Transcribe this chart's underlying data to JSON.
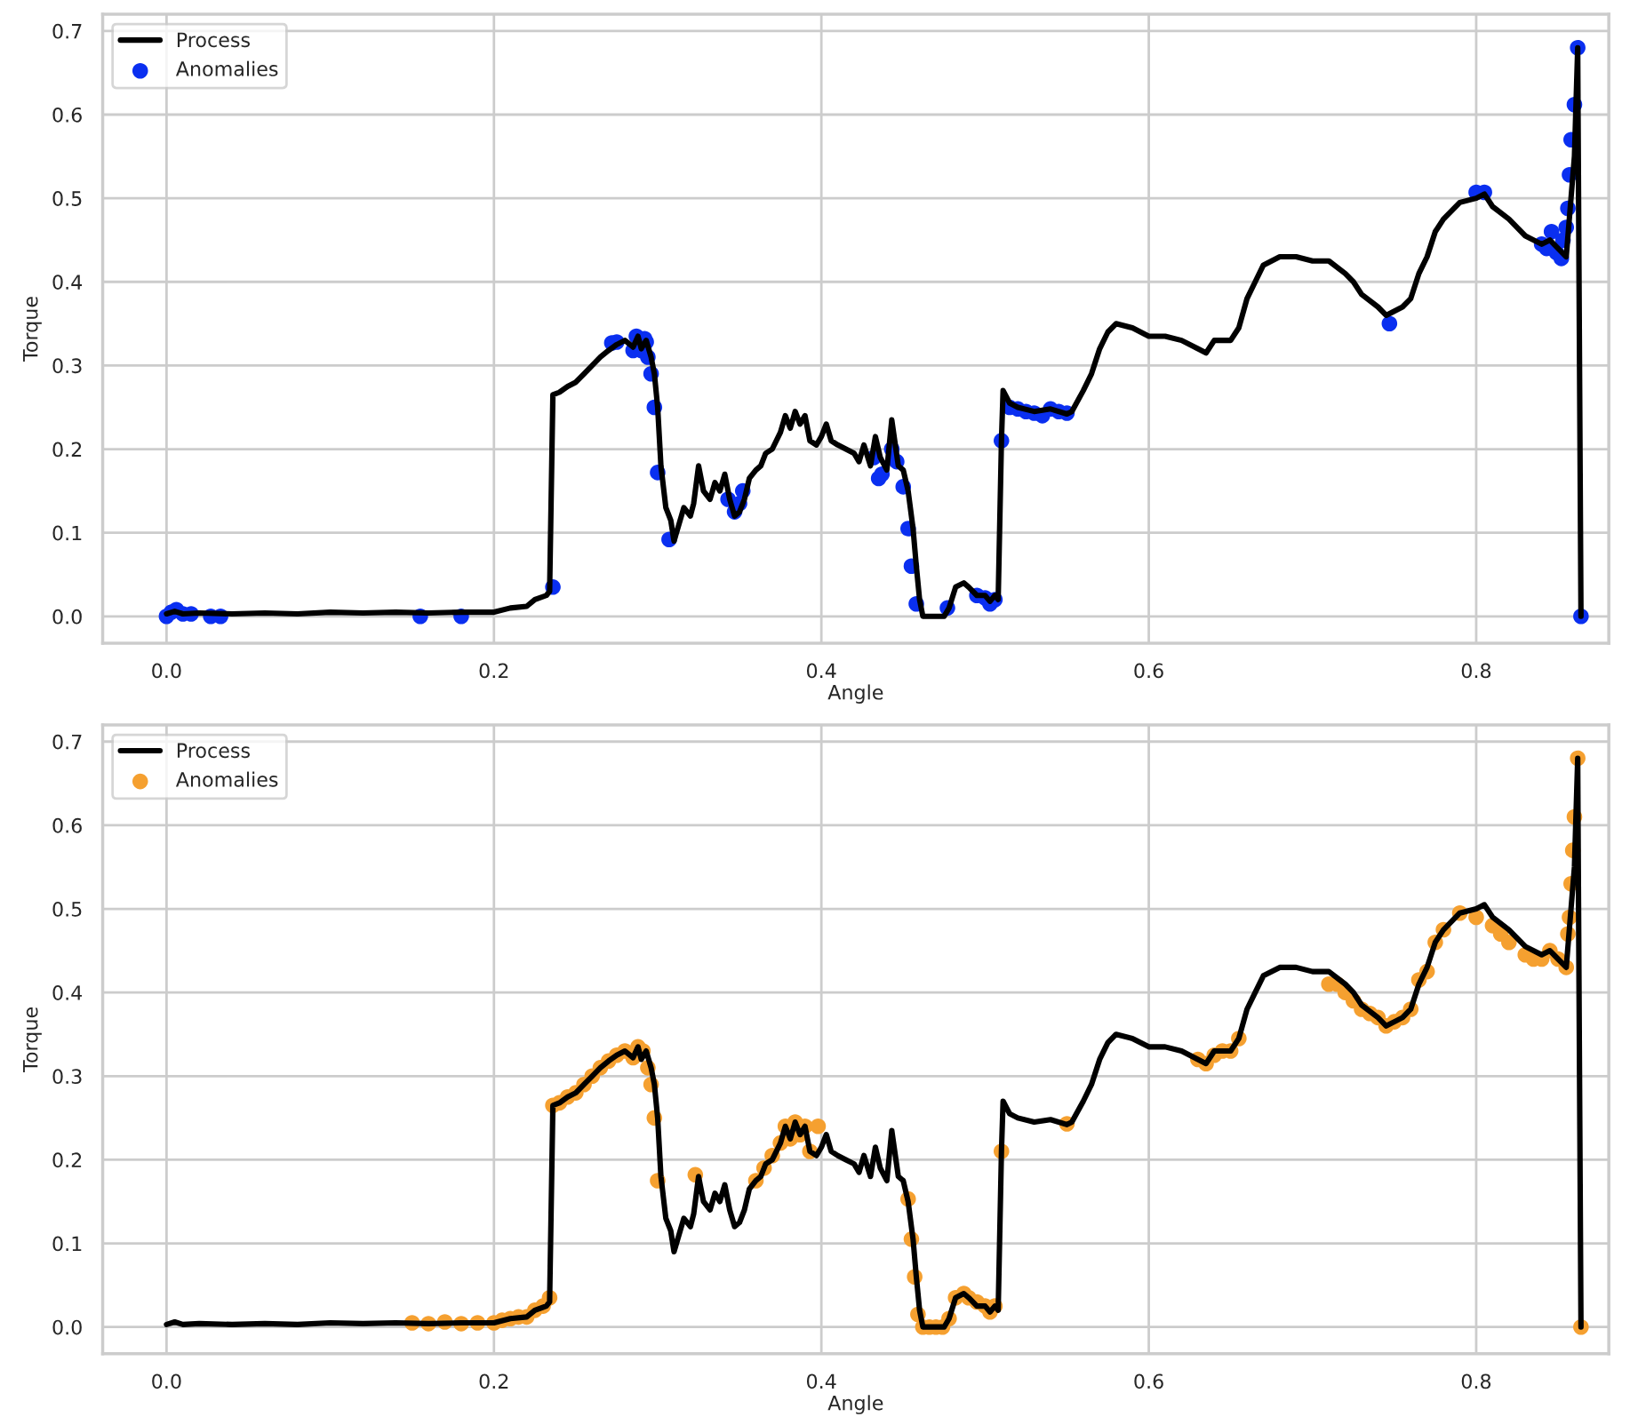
{
  "chart_data": [
    {
      "type": "line",
      "xlabel": "Angle",
      "ylabel": "Torque",
      "xlim": [
        -0.039,
        0.881
      ],
      "ylim": [
        -0.032,
        0.72
      ],
      "xticks": [
        {
          "value": 0.0,
          "label": "0.0"
        },
        {
          "value": 0.2,
          "label": "0.2"
        },
        {
          "value": 0.4,
          "label": "0.4"
        },
        {
          "value": 0.6,
          "label": "0.6"
        },
        {
          "value": 0.8,
          "label": "0.8"
        }
      ],
      "yticks": [
        {
          "value": 0.0,
          "label": "0.0"
        },
        {
          "value": 0.1,
          "label": "0.1"
        },
        {
          "value": 0.2,
          "label": "0.2"
        },
        {
          "value": 0.3,
          "label": "0.3"
        },
        {
          "value": 0.4,
          "label": "0.4"
        },
        {
          "value": 0.5,
          "label": "0.5"
        },
        {
          "value": 0.6,
          "label": "0.6"
        },
        {
          "value": 0.7,
          "label": "0.7"
        }
      ],
      "grid": true,
      "legend": "top left",
      "series": [
        {
          "name": "Process",
          "color": "#000000",
          "line_style": "solid",
          "x": [
            0.0,
            0.005,
            0.01,
            0.02,
            0.04,
            0.06,
            0.08,
            0.1,
            0.12,
            0.14,
            0.16,
            0.18,
            0.2,
            0.21,
            0.22,
            0.225,
            0.232,
            0.234,
            0.236,
            0.24,
            0.245,
            0.25,
            0.255,
            0.26,
            0.265,
            0.27,
            0.275,
            0.28,
            0.285,
            0.288,
            0.29,
            0.293,
            0.296,
            0.298,
            0.3,
            0.302,
            0.305,
            0.308,
            0.31,
            0.313,
            0.316,
            0.32,
            0.322,
            0.325,
            0.328,
            0.332,
            0.335,
            0.338,
            0.341,
            0.344,
            0.347,
            0.35,
            0.353,
            0.356,
            0.36,
            0.363,
            0.366,
            0.37,
            0.375,
            0.378,
            0.381,
            0.384,
            0.387,
            0.39,
            0.393,
            0.397,
            0.4,
            0.403,
            0.406,
            0.41,
            0.415,
            0.42,
            0.423,
            0.426,
            0.43,
            0.433,
            0.436,
            0.44,
            0.443,
            0.447,
            0.45,
            0.453,
            0.456,
            0.458,
            0.46,
            0.462,
            0.475,
            0.478,
            0.482,
            0.487,
            0.49,
            0.495,
            0.5,
            0.503,
            0.506,
            0.508,
            0.51,
            0.511,
            0.515,
            0.52,
            0.53,
            0.54,
            0.55,
            0.553,
            0.56,
            0.565,
            0.57,
            0.575,
            0.58,
            0.59,
            0.6,
            0.61,
            0.62,
            0.63,
            0.635,
            0.64,
            0.65,
            0.655,
            0.66,
            0.665,
            0.67,
            0.68,
            0.69,
            0.7,
            0.71,
            0.72,
            0.725,
            0.73,
            0.74,
            0.745,
            0.75,
            0.755,
            0.76,
            0.765,
            0.77,
            0.775,
            0.78,
            0.79,
            0.8,
            0.805,
            0.81,
            0.82,
            0.83,
            0.84,
            0.845,
            0.85,
            0.855,
            0.86,
            0.862,
            0.864
          ],
          "values": [
            0.003,
            0.006,
            0.003,
            0.004,
            0.003,
            0.004,
            0.003,
            0.005,
            0.004,
            0.005,
            0.004,
            0.005,
            0.005,
            0.01,
            0.012,
            0.02,
            0.025,
            0.03,
            0.265,
            0.268,
            0.275,
            0.28,
            0.29,
            0.3,
            0.31,
            0.318,
            0.325,
            0.33,
            0.322,
            0.335,
            0.32,
            0.33,
            0.31,
            0.29,
            0.25,
            0.18,
            0.13,
            0.115,
            0.09,
            0.11,
            0.13,
            0.12,
            0.135,
            0.18,
            0.15,
            0.14,
            0.16,
            0.15,
            0.17,
            0.14,
            0.12,
            0.125,
            0.14,
            0.165,
            0.175,
            0.18,
            0.195,
            0.2,
            0.22,
            0.24,
            0.225,
            0.245,
            0.23,
            0.24,
            0.21,
            0.205,
            0.215,
            0.23,
            0.21,
            0.205,
            0.2,
            0.195,
            0.185,
            0.205,
            0.18,
            0.215,
            0.19,
            0.175,
            0.235,
            0.18,
            0.175,
            0.15,
            0.105,
            0.06,
            0.02,
            0.0,
            0.0,
            0.01,
            0.035,
            0.04,
            0.035,
            0.025,
            0.025,
            0.018,
            0.025,
            0.02,
            0.21,
            0.27,
            0.255,
            0.25,
            0.245,
            0.248,
            0.242,
            0.245,
            0.27,
            0.29,
            0.32,
            0.34,
            0.35,
            0.345,
            0.335,
            0.335,
            0.33,
            0.32,
            0.315,
            0.33,
            0.33,
            0.345,
            0.38,
            0.4,
            0.42,
            0.43,
            0.43,
            0.425,
            0.425,
            0.41,
            0.4,
            0.385,
            0.37,
            0.36,
            0.365,
            0.37,
            0.38,
            0.41,
            0.43,
            0.46,
            0.475,
            0.495,
            0.5,
            0.505,
            0.49,
            0.475,
            0.455,
            0.445,
            0.45,
            0.44,
            0.43,
            0.55,
            0.68,
            0.0
          ]
        },
        {
          "name": "Anomalies",
          "type": "scatter",
          "color": "#0a2ff0",
          "marker": "circle",
          "x": [
            0.0,
            0.003,
            0.006,
            0.01,
            0.015,
            0.027,
            0.033,
            0.155,
            0.18,
            0.236,
            0.272,
            0.275,
            0.285,
            0.287,
            0.29,
            0.292,
            0.293,
            0.294,
            0.296,
            0.298,
            0.3,
            0.307,
            0.343,
            0.347,
            0.35,
            0.352,
            0.432,
            0.435,
            0.437,
            0.443,
            0.446,
            0.45,
            0.453,
            0.455,
            0.458,
            0.477,
            0.495,
            0.5,
            0.503,
            0.506,
            0.51,
            0.515,
            0.52,
            0.525,
            0.53,
            0.535,
            0.54,
            0.545,
            0.55,
            0.747,
            0.8,
            0.805,
            0.84,
            0.843,
            0.846,
            0.849,
            0.852,
            0.853,
            0.855,
            0.856,
            0.857,
            0.858,
            0.86,
            0.862,
            0.864
          ],
          "values": [
            0.0,
            0.005,
            0.008,
            0.003,
            0.003,
            0.0,
            0.0,
            0.0,
            0.0,
            0.035,
            0.327,
            0.328,
            0.318,
            0.335,
            0.318,
            0.332,
            0.328,
            0.31,
            0.29,
            0.25,
            0.172,
            0.092,
            0.14,
            0.125,
            0.135,
            0.15,
            0.19,
            0.165,
            0.17,
            0.2,
            0.185,
            0.155,
            0.105,
            0.06,
            0.015,
            0.01,
            0.025,
            0.022,
            0.015,
            0.02,
            0.21,
            0.25,
            0.248,
            0.245,
            0.243,
            0.24,
            0.248,
            0.245,
            0.243,
            0.35,
            0.507,
            0.507,
            0.445,
            0.44,
            0.46,
            0.435,
            0.428,
            0.45,
            0.465,
            0.488,
            0.528,
            0.57,
            0.612,
            0.68,
            0.0
          ]
        }
      ]
    },
    {
      "type": "line",
      "xlabel": "Angle",
      "ylabel": "Torque",
      "xlim": [
        -0.039,
        0.881
      ],
      "ylim": [
        -0.032,
        0.72
      ],
      "xticks": [
        {
          "value": 0.0,
          "label": "0.0"
        },
        {
          "value": 0.2,
          "label": "0.2"
        },
        {
          "value": 0.4,
          "label": "0.4"
        },
        {
          "value": 0.6,
          "label": "0.6"
        },
        {
          "value": 0.8,
          "label": "0.8"
        }
      ],
      "yticks": [
        {
          "value": 0.0,
          "label": "0.0"
        },
        {
          "value": 0.1,
          "label": "0.1"
        },
        {
          "value": 0.2,
          "label": "0.2"
        },
        {
          "value": 0.3,
          "label": "0.3"
        },
        {
          "value": 0.4,
          "label": "0.4"
        },
        {
          "value": 0.5,
          "label": "0.5"
        },
        {
          "value": 0.6,
          "label": "0.6"
        },
        {
          "value": 0.7,
          "label": "0.7"
        }
      ],
      "grid": true,
      "legend": "top left",
      "series": [
        {
          "name": "Process",
          "type": "line",
          "color": "#000000",
          "line_style": "solid",
          "x": [
            0.0,
            0.005,
            0.01,
            0.02,
            0.04,
            0.06,
            0.08,
            0.1,
            0.12,
            0.14,
            0.16,
            0.18,
            0.2,
            0.21,
            0.22,
            0.225,
            0.232,
            0.234,
            0.236,
            0.24,
            0.245,
            0.25,
            0.255,
            0.26,
            0.265,
            0.27,
            0.275,
            0.28,
            0.285,
            0.288,
            0.29,
            0.293,
            0.296,
            0.298,
            0.3,
            0.302,
            0.305,
            0.308,
            0.31,
            0.313,
            0.316,
            0.32,
            0.322,
            0.325,
            0.328,
            0.332,
            0.335,
            0.338,
            0.341,
            0.344,
            0.347,
            0.35,
            0.353,
            0.356,
            0.36,
            0.363,
            0.366,
            0.37,
            0.375,
            0.378,
            0.381,
            0.384,
            0.387,
            0.39,
            0.393,
            0.397,
            0.4,
            0.403,
            0.406,
            0.41,
            0.415,
            0.42,
            0.423,
            0.426,
            0.43,
            0.433,
            0.436,
            0.44,
            0.443,
            0.447,
            0.45,
            0.453,
            0.456,
            0.458,
            0.46,
            0.462,
            0.475,
            0.478,
            0.482,
            0.487,
            0.49,
            0.495,
            0.5,
            0.503,
            0.506,
            0.508,
            0.51,
            0.511,
            0.515,
            0.52,
            0.53,
            0.54,
            0.55,
            0.553,
            0.56,
            0.565,
            0.57,
            0.575,
            0.58,
            0.59,
            0.6,
            0.61,
            0.62,
            0.63,
            0.635,
            0.64,
            0.65,
            0.655,
            0.66,
            0.665,
            0.67,
            0.68,
            0.69,
            0.7,
            0.71,
            0.72,
            0.725,
            0.73,
            0.74,
            0.745,
            0.75,
            0.755,
            0.76,
            0.765,
            0.77,
            0.775,
            0.78,
            0.79,
            0.8,
            0.805,
            0.81,
            0.82,
            0.83,
            0.84,
            0.845,
            0.85,
            0.855,
            0.86,
            0.862,
            0.864
          ],
          "values": [
            0.003,
            0.006,
            0.003,
            0.004,
            0.003,
            0.004,
            0.003,
            0.005,
            0.004,
            0.005,
            0.004,
            0.005,
            0.005,
            0.01,
            0.012,
            0.02,
            0.025,
            0.03,
            0.265,
            0.268,
            0.275,
            0.28,
            0.29,
            0.3,
            0.31,
            0.318,
            0.325,
            0.33,
            0.322,
            0.335,
            0.32,
            0.33,
            0.31,
            0.29,
            0.25,
            0.18,
            0.13,
            0.115,
            0.09,
            0.11,
            0.13,
            0.12,
            0.135,
            0.18,
            0.15,
            0.14,
            0.16,
            0.15,
            0.17,
            0.14,
            0.12,
            0.125,
            0.14,
            0.165,
            0.175,
            0.18,
            0.195,
            0.2,
            0.22,
            0.24,
            0.225,
            0.245,
            0.23,
            0.24,
            0.21,
            0.205,
            0.215,
            0.23,
            0.21,
            0.205,
            0.2,
            0.195,
            0.185,
            0.205,
            0.18,
            0.215,
            0.19,
            0.175,
            0.235,
            0.18,
            0.175,
            0.15,
            0.105,
            0.06,
            0.02,
            0.0,
            0.0,
            0.01,
            0.035,
            0.04,
            0.035,
            0.025,
            0.025,
            0.018,
            0.025,
            0.02,
            0.21,
            0.27,
            0.255,
            0.25,
            0.245,
            0.248,
            0.242,
            0.245,
            0.27,
            0.29,
            0.32,
            0.34,
            0.35,
            0.345,
            0.335,
            0.335,
            0.33,
            0.32,
            0.315,
            0.33,
            0.33,
            0.345,
            0.38,
            0.4,
            0.42,
            0.43,
            0.43,
            0.425,
            0.425,
            0.41,
            0.4,
            0.385,
            0.37,
            0.36,
            0.365,
            0.37,
            0.38,
            0.41,
            0.43,
            0.46,
            0.475,
            0.495,
            0.5,
            0.505,
            0.49,
            0.475,
            0.455,
            0.445,
            0.45,
            0.44,
            0.43,
            0.55,
            0.68,
            0.0
          ]
        },
        {
          "name": "Anomalies",
          "type": "scatter",
          "color": "#f5a030",
          "marker": "circle",
          "x": [
            0.15,
            0.16,
            0.17,
            0.18,
            0.19,
            0.2,
            0.205,
            0.21,
            0.215,
            0.22,
            0.225,
            0.23,
            0.234,
            0.236,
            0.24,
            0.245,
            0.25,
            0.255,
            0.26,
            0.265,
            0.27,
            0.275,
            0.28,
            0.285,
            0.288,
            0.291,
            0.294,
            0.296,
            0.298,
            0.3,
            0.323,
            0.36,
            0.365,
            0.37,
            0.375,
            0.378,
            0.381,
            0.384,
            0.387,
            0.39,
            0.393,
            0.398,
            0.453,
            0.455,
            0.457,
            0.459,
            0.462,
            0.466,
            0.47,
            0.474,
            0.478,
            0.482,
            0.487,
            0.49,
            0.495,
            0.5,
            0.503,
            0.506,
            0.51,
            0.55,
            0.63,
            0.635,
            0.64,
            0.645,
            0.65,
            0.655,
            0.71,
            0.715,
            0.72,
            0.725,
            0.73,
            0.735,
            0.74,
            0.745,
            0.75,
            0.755,
            0.76,
            0.765,
            0.77,
            0.775,
            0.78,
            0.79,
            0.8,
            0.81,
            0.815,
            0.82,
            0.83,
            0.835,
            0.84,
            0.845,
            0.85,
            0.855,
            0.856,
            0.857,
            0.858,
            0.859,
            0.86,
            0.862,
            0.864
          ],
          "values": [
            0.005,
            0.004,
            0.006,
            0.004,
            0.005,
            0.005,
            0.008,
            0.01,
            0.012,
            0.012,
            0.02,
            0.025,
            0.035,
            0.265,
            0.268,
            0.275,
            0.28,
            0.29,
            0.3,
            0.31,
            0.318,
            0.325,
            0.33,
            0.322,
            0.335,
            0.33,
            0.31,
            0.29,
            0.25,
            0.175,
            0.182,
            0.175,
            0.19,
            0.205,
            0.22,
            0.24,
            0.225,
            0.245,
            0.23,
            0.24,
            0.21,
            0.24,
            0.153,
            0.105,
            0.06,
            0.015,
            0.0,
            0.0,
            0.0,
            0.0,
            0.01,
            0.035,
            0.04,
            0.035,
            0.03,
            0.025,
            0.018,
            0.025,
            0.21,
            0.243,
            0.32,
            0.315,
            0.325,
            0.33,
            0.33,
            0.345,
            0.41,
            0.41,
            0.4,
            0.39,
            0.38,
            0.375,
            0.37,
            0.36,
            0.365,
            0.37,
            0.38,
            0.415,
            0.425,
            0.46,
            0.475,
            0.495,
            0.49,
            0.48,
            0.47,
            0.46,
            0.445,
            0.44,
            0.44,
            0.45,
            0.44,
            0.43,
            0.47,
            0.49,
            0.53,
            0.57,
            0.61,
            0.68,
            0.0
          ]
        }
      ]
    }
  ]
}
